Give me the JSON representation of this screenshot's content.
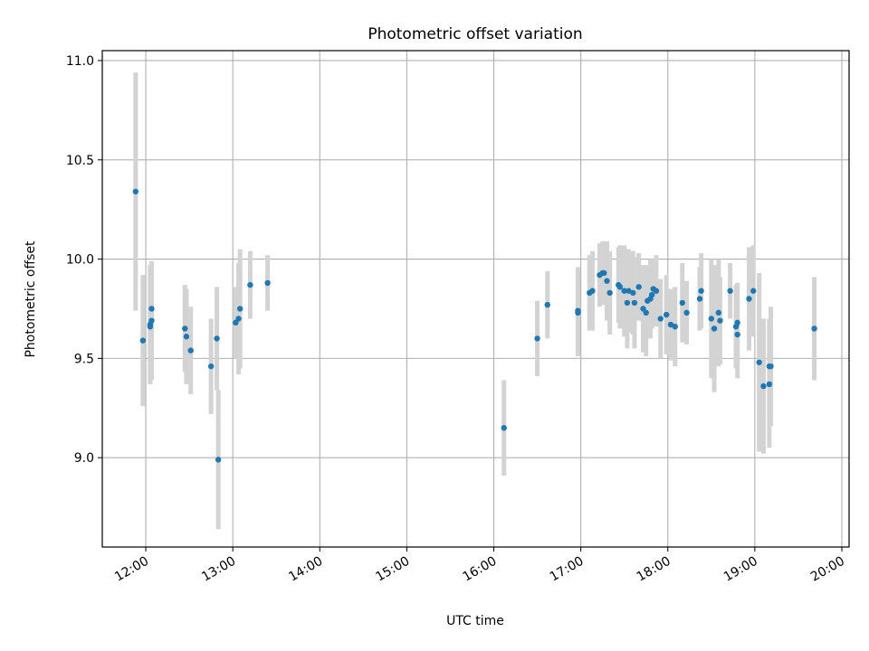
{
  "chart_data": {
    "type": "scatter",
    "title": "Photometric offset variation",
    "xlabel": "UTC time",
    "ylabel": "Photometric offset",
    "xlim": [
      "11:30",
      "20:05"
    ],
    "ylim": [
      8.55,
      11.05
    ],
    "xticks": [
      "12:00",
      "13:00",
      "14:00",
      "15:00",
      "16:00",
      "17:00",
      "18:00",
      "19:00",
      "20:00"
    ],
    "yticks": [
      9.0,
      9.5,
      10.0,
      10.5,
      11.0
    ],
    "ytick_labels": [
      "9.0",
      "9.5",
      "10.0",
      "10.5",
      "11.0"
    ],
    "grid": true,
    "point_color": "#1f77b4",
    "errorbar_color": "#d3d3d3",
    "series": [
      {
        "x": [
          "11:53",
          "11:58",
          "12:03",
          "12:03",
          "12:04",
          "12:04",
          "12:27",
          "12:28",
          "12:31",
          "12:45",
          "12:49",
          "12:50",
          "13:02",
          "13:04",
          "13:05",
          "13:12",
          "13:24",
          "16:07",
          "16:30",
          "16:37",
          "16:58",
          "16:58",
          "17:06",
          "17:08",
          "17:13",
          "17:15",
          "17:16",
          "17:18",
          "17:20",
          "17:26",
          "17:27",
          "17:30",
          "17:32",
          "17:33",
          "17:36",
          "17:37",
          "17:40",
          "17:43",
          "17:45",
          "17:46",
          "17:48",
          "17:49",
          "17:50",
          "17:52",
          "17:55",
          "17:59",
          "18:02",
          "18:05",
          "18:10",
          "18:13",
          "18:22",
          "18:23",
          "18:30",
          "18:32",
          "18:35",
          "18:36",
          "18:43",
          "18:47",
          "18:48",
          "18:48",
          "18:56",
          "18:59",
          "19:03",
          "19:06",
          "19:10",
          "19:10",
          "19:11",
          "19:41"
        ],
        "y": [
          10.34,
          9.59,
          9.66,
          9.67,
          9.75,
          9.69,
          9.65,
          9.61,
          9.54,
          9.46,
          9.6,
          8.99,
          9.68,
          9.7,
          9.75,
          9.87,
          9.88,
          9.15,
          9.6,
          9.77,
          9.74,
          9.73,
          9.83,
          9.84,
          9.92,
          9.93,
          9.93,
          9.89,
          9.83,
          9.87,
          9.86,
          9.84,
          9.78,
          9.84,
          9.83,
          9.78,
          9.86,
          9.75,
          9.73,
          9.79,
          9.8,
          9.82,
          9.85,
          9.84,
          9.7,
          9.72,
          9.67,
          9.66,
          9.78,
          9.73,
          9.8,
          9.84,
          9.7,
          9.65,
          9.73,
          9.69,
          9.84,
          9.66,
          9.68,
          9.62,
          9.8,
          9.84,
          9.48,
          9.36,
          9.37,
          9.46,
          9.46,
          9.65
        ],
        "yerr": [
          0.6,
          0.33,
          0.29,
          0.3,
          0.23,
          0.3,
          0.22,
          0.24,
          0.22,
          0.24,
          0.26,
          0.35,
          0.18,
          0.28,
          0.3,
          0.17,
          0.14,
          0.24,
          0.19,
          0.17,
          0.22,
          0.22,
          0.19,
          0.2,
          0.16,
          0.16,
          0.16,
          0.2,
          0.21,
          0.19,
          0.21,
          0.23,
          0.23,
          0.21,
          0.21,
          0.23,
          0.17,
          0.22,
          0.22,
          0.18,
          0.2,
          0.17,
          0.15,
          0.18,
          0.2,
          0.2,
          0.18,
          0.2,
          0.2,
          0.16,
          0.16,
          0.19,
          0.3,
          0.32,
          0.27,
          0.22,
          0.14,
          0.21,
          0.2,
          0.22,
          0.26,
          0.23,
          0.45,
          0.34,
          0.32,
          0.24,
          0.3,
          0.26
        ]
      }
    ]
  }
}
